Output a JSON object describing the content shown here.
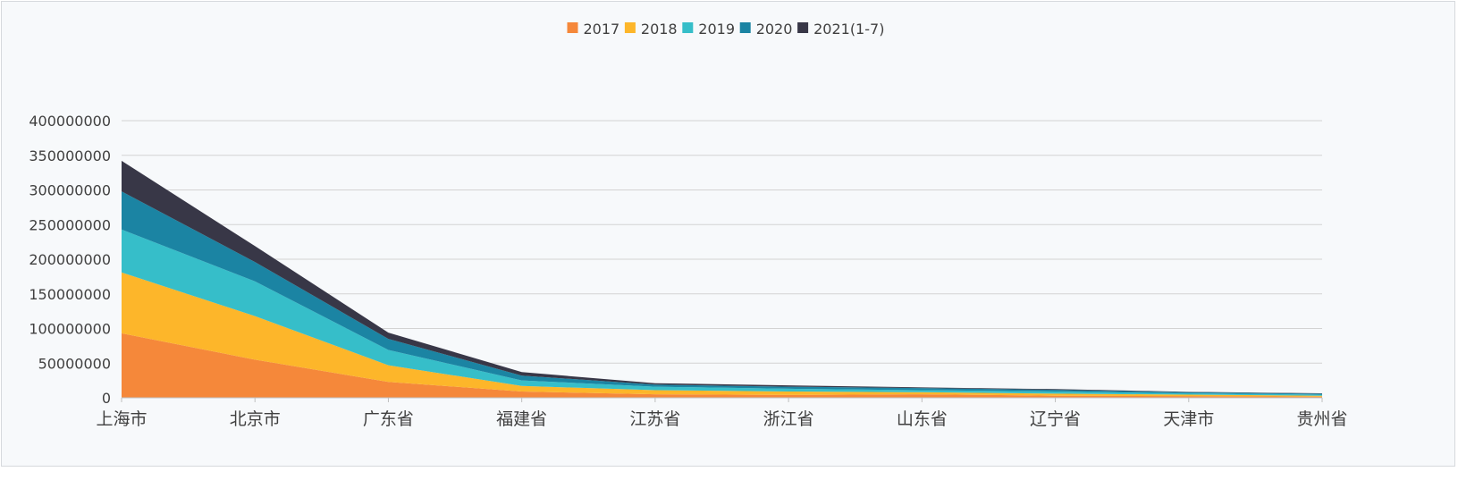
{
  "chart_data": {
    "type": "area",
    "stacked": true,
    "categories": [
      "上海市",
      "北京市",
      "广东省",
      "福建省",
      "江苏省",
      "浙江省",
      "山东省",
      "辽宁省",
      "天津市",
      "贵州省"
    ],
    "series": [
      {
        "name": "2017",
        "color": "#f5883a",
        "values": [
          93000000,
          55000000,
          23000000,
          9000000,
          5000000,
          4000000,
          5000000,
          3000000,
          2500000,
          1500000
        ]
      },
      {
        "name": "2018",
        "color": "#fdb62a",
        "values": [
          88000000,
          63000000,
          24000000,
          8000000,
          6000000,
          5000000,
          3000000,
          3000000,
          2000000,
          1500000
        ]
      },
      {
        "name": "2019",
        "color": "#36bec9",
        "values": [
          62000000,
          50000000,
          22000000,
          8000000,
          5000000,
          4000000,
          3000000,
          3000000,
          2000000,
          1500000
        ]
      },
      {
        "name": "2020",
        "color": "#1b84a3",
        "values": [
          55000000,
          28000000,
          16000000,
          7000000,
          3000000,
          3000000,
          3000000,
          2500000,
          1500000,
          1500000
        ]
      },
      {
        "name": "2021(1-7)",
        "color": "#383747",
        "values": [
          44000000,
          23000000,
          9000000,
          5000000,
          2000000,
          2000000,
          1000000,
          1000000,
          500000,
          500000
        ]
      }
    ],
    "ylim": [
      0,
      400000000
    ],
    "yticks": [
      "0",
      "50000000",
      "100000000",
      "150000000",
      "200000000",
      "250000000",
      "300000000",
      "350000000",
      "400000000"
    ],
    "grid": true,
    "legend_position": "top-center"
  }
}
